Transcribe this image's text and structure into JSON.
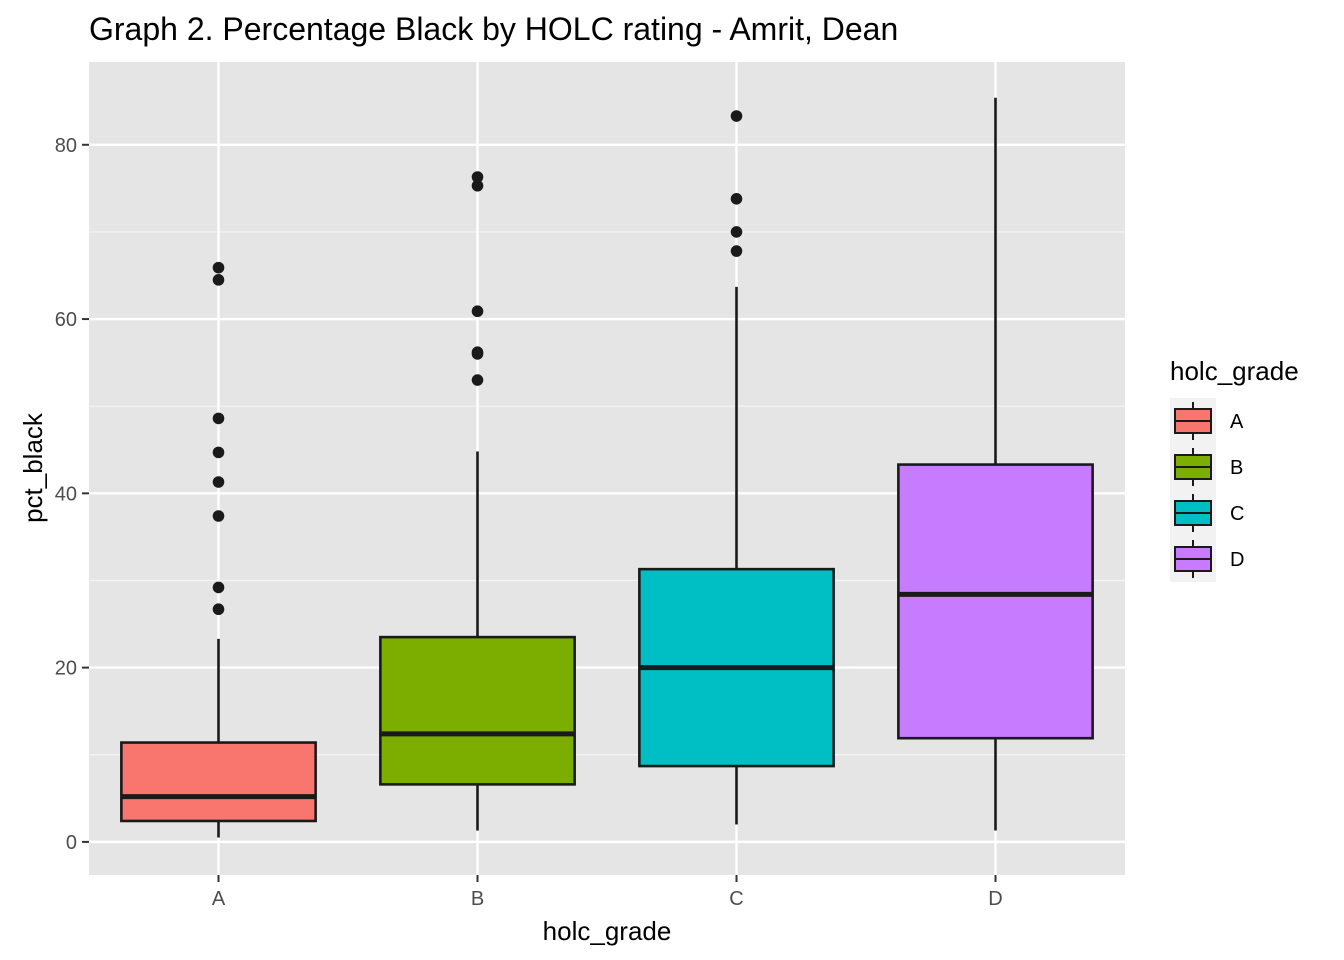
{
  "chart_data": {
    "type": "box",
    "title": "Graph 2. Percentage Black by HOLC rating - Amrit, Dean",
    "xlabel": "holc_grade",
    "ylabel": "pct_black",
    "ylim": [
      -3.8,
      89.5
    ],
    "yticks": [
      "0",
      "20",
      "40",
      "60",
      "80"
    ],
    "categories": [
      "A",
      "B",
      "C",
      "D"
    ],
    "grid": true,
    "legend": {
      "title": "holc_grade",
      "position": "right"
    },
    "boxes": [
      {
        "category": "A",
        "color": "#f8766d",
        "whisker_low": 0.5,
        "q1": 2.4,
        "median": 5.2,
        "q3": 11.4,
        "whisker_high": 23.3,
        "outliers": [
          26.7,
          29.2,
          37.4,
          41.3,
          44.7,
          48.6,
          64.5,
          65.9
        ]
      },
      {
        "category": "B",
        "color": "#7cae00",
        "whisker_low": 1.3,
        "q1": 6.6,
        "median": 12.4,
        "q3": 23.5,
        "whisker_high": 44.8,
        "outliers": [
          53.0,
          56.0,
          56.2,
          60.9,
          75.3,
          76.3
        ]
      },
      {
        "category": "C",
        "color": "#00bfc4",
        "whisker_low": 2.0,
        "q1": 8.7,
        "median": 20.0,
        "q3": 31.3,
        "whisker_high": 63.7,
        "outliers": [
          67.8,
          70.0,
          73.8,
          83.3
        ]
      },
      {
        "category": "D",
        "color": "#c77cff",
        "whisker_low": 1.3,
        "q1": 11.9,
        "median": 28.4,
        "q3": 43.3,
        "whisker_high": 85.4,
        "outliers": []
      }
    ]
  }
}
